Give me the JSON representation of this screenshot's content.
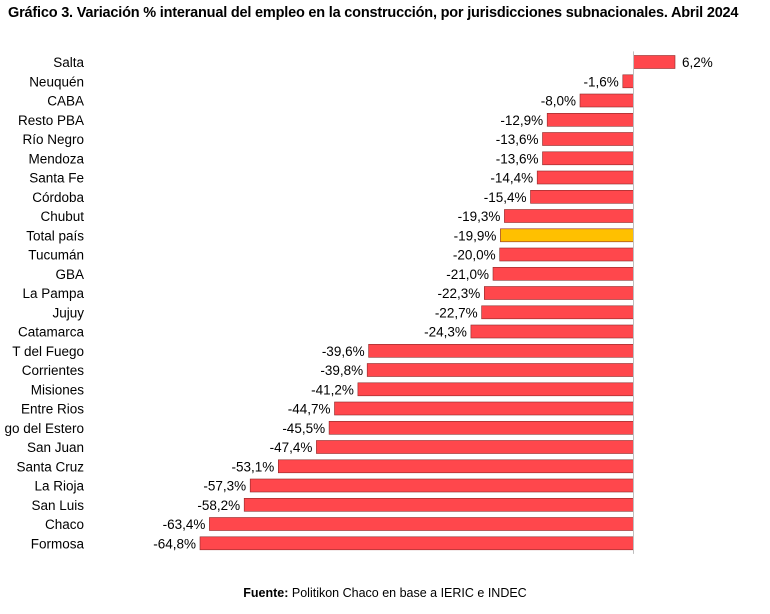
{
  "chart_data": {
    "type": "bar",
    "orientation": "horizontal",
    "title": "Gráfico 3. Variación % interanual del empleo en la construcción, por jurisdicciones subnacionales. Abril 2024",
    "categories": [
      "Salta",
      "Neuquén",
      "CABA",
      "Resto PBA",
      "Río Negro",
      "Mendoza",
      "Santa Fe",
      "Córdoba",
      "Chubut",
      "Total país",
      "Tucumán",
      "GBA",
      "La Pampa",
      "Jujuy",
      "Catamarca",
      "T del Fuego",
      "Corrientes",
      "Misiones",
      "Entre Rios",
      "go del Estero",
      "San Juan",
      "Santa Cruz",
      "La Rioja",
      "San Luis",
      "Chaco",
      "Formosa"
    ],
    "values": [
      6.2,
      -1.6,
      -8.0,
      -12.9,
      -13.6,
      -13.6,
      -14.4,
      -15.4,
      -19.3,
      -19.9,
      -20.0,
      -21.0,
      -22.3,
      -22.7,
      -24.3,
      -39.6,
      -39.8,
      -41.2,
      -44.7,
      -45.5,
      -47.4,
      -53.1,
      -57.3,
      -58.2,
      -63.4,
      -64.8
    ],
    "data_labels": [
      "6,2%",
      "-1,6%",
      "-8,0%",
      "-12,9%",
      "-13,6%",
      "-13,6%",
      "-14,4%",
      "-15,4%",
      "-19,3%",
      "-19,9%",
      "-20,0%",
      "-21,0%",
      "-22,3%",
      "-22,7%",
      "-24,3%",
      "-39,6%",
      "-39,8%",
      "-41,2%",
      "-44,7%",
      "-45,5%",
      "-47,4%",
      "-53,1%",
      "-57,3%",
      "-58,2%",
      "-63,4%",
      "-64,8%"
    ],
    "highlight_category": "Total país",
    "colors": {
      "bar": "#ff474c",
      "highlight": "#ffc000",
      "bar_border": "#8c2a2a",
      "axis": "#bfbfbf"
    },
    "xlabel": "",
    "ylabel": "",
    "xlim": [
      -70,
      8
    ],
    "grid": false,
    "legend": "none"
  },
  "source": {
    "label": "Fuente:",
    "text": " Politikon Chaco en base a IERIC e INDEC"
  }
}
